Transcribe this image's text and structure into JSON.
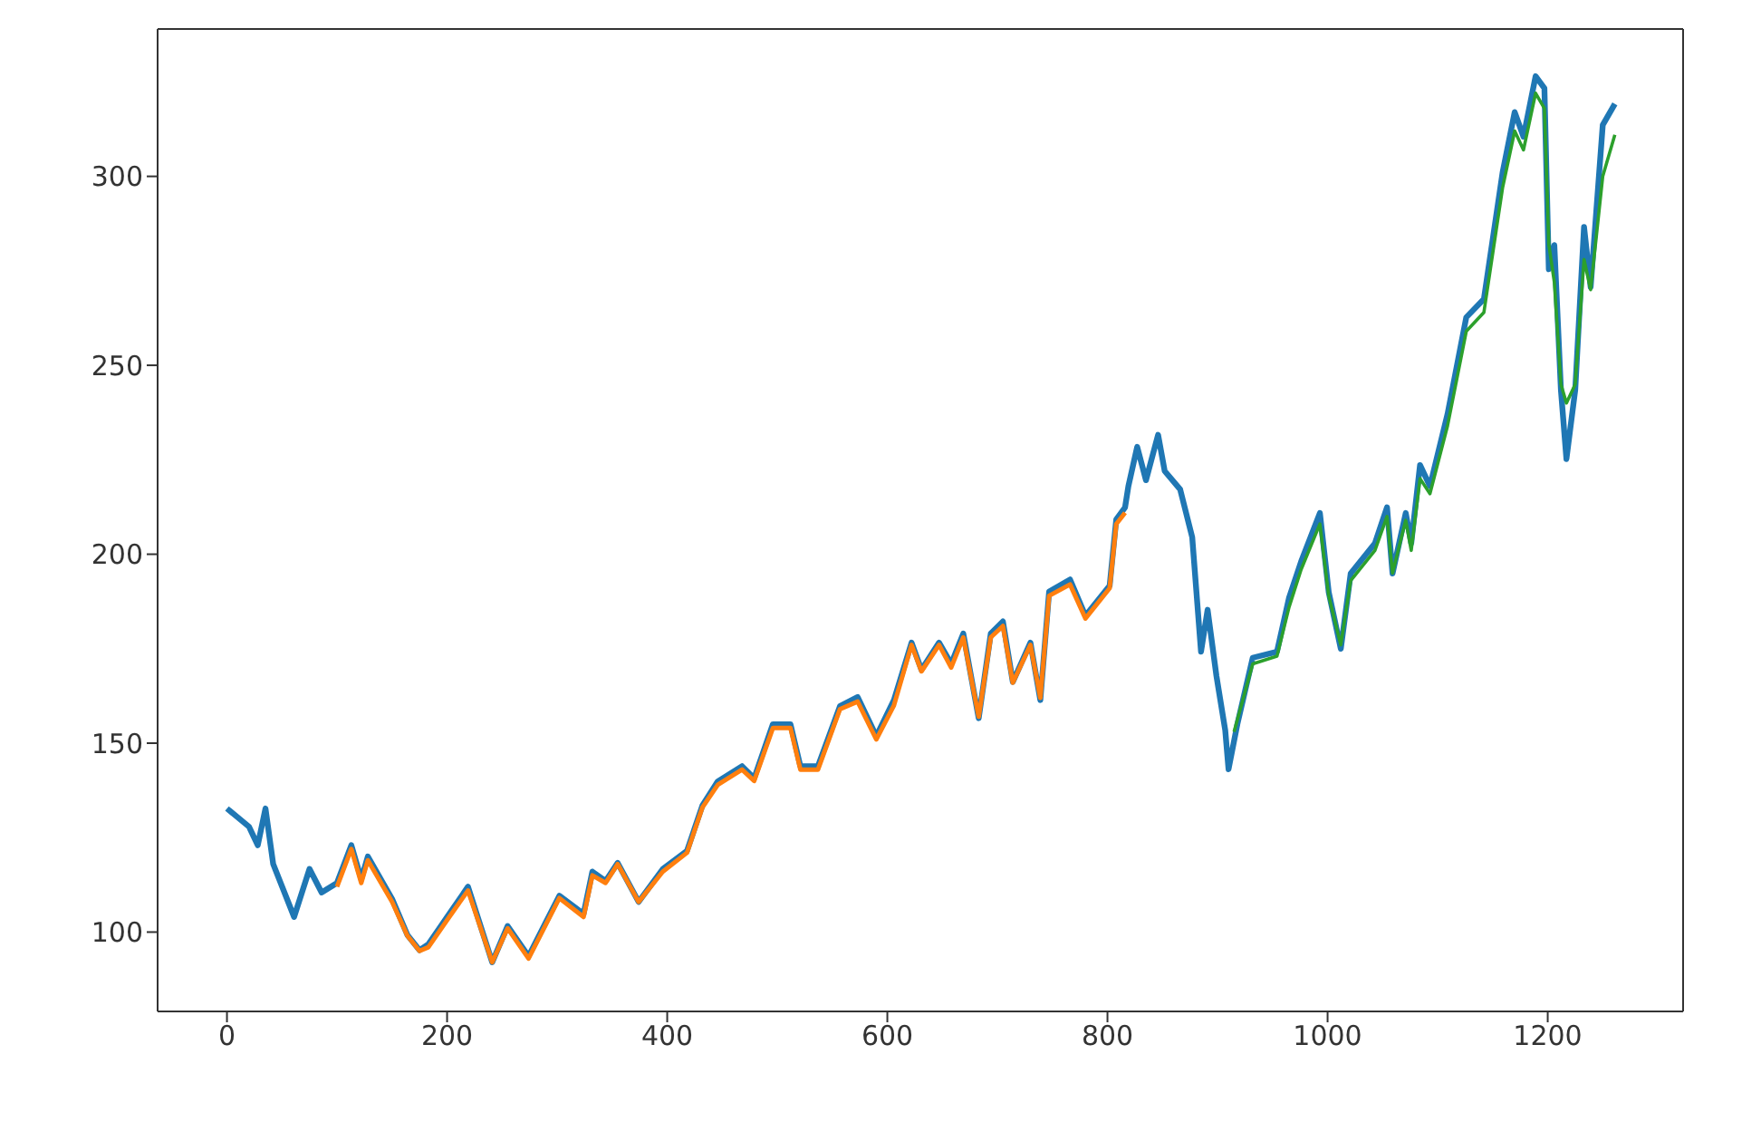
{
  "chart_data": {
    "type": "line",
    "xlim": [
      -63,
      1323
    ],
    "ylim": [
      79,
      339
    ],
    "xticks": [
      0,
      200,
      400,
      600,
      800,
      1000,
      1200
    ],
    "yticks": [
      100,
      150,
      200,
      250,
      300
    ],
    "grid": false,
    "marker": "none",
    "line_style": "solid",
    "series": [
      {
        "color": "#1f77b4",
        "x": [
          0,
          20,
          28,
          35,
          42,
          61,
          75,
          86,
          100,
          113,
          122,
          128,
          150,
          164,
          175,
          183,
          202,
          219,
          241,
          255,
          274,
          302,
          324,
          332,
          344,
          355,
          374,
          396,
          418,
          432,
          446,
          468,
          479,
          496,
          512,
          521,
          537,
          557,
          573,
          590,
          606,
          622,
          631,
          647,
          658,
          669,
          683,
          694,
          705,
          714,
          730,
          739,
          747,
          766,
          780,
          802,
          808,
          816,
          819,
          827,
          835,
          846,
          852,
          866,
          877,
          885,
          891,
          899,
          907,
          910,
          918,
          932,
          954,
          965,
          976,
          993,
          1001,
          1012,
          1021,
          1043,
          1054,
          1059,
          1071,
          1076,
          1084,
          1093,
          1109,
          1126,
          1142,
          1159,
          1170,
          1178,
          1189,
          1197,
          1201,
          1206,
          1212,
          1217,
          1225,
          1233,
          1239,
          1250,
          1261
        ],
        "values": [
          132.7,
          127.9,
          123,
          132.7,
          118,
          104,
          116.7,
          110.5,
          113,
          123,
          114,
          120,
          108.8,
          99.2,
          95.2,
          96.8,
          104.8,
          112,
          92,
          101.6,
          93.6,
          109.6,
          104.8,
          116,
          113.5,
          118.3,
          108,
          116.7,
          121.5,
          133.5,
          139.9,
          143.9,
          140.7,
          155,
          155,
          143.9,
          143.9,
          159.8,
          162.2,
          151.8,
          161.4,
          176.6,
          169.4,
          176.6,
          171,
          179,
          156.6,
          179,
          182.2,
          166.2,
          176.6,
          161.4,
          190.1,
          193.3,
          183.7,
          191.7,
          209.2,
          212.4,
          218,
          228.4,
          219.6,
          231.6,
          222,
          217.2,
          204.5,
          174.2,
          185.3,
          167.8,
          153.4,
          143.1,
          155,
          172.6,
          174.2,
          188.5,
          198.1,
          210.9,
          190,
          175,
          194.9,
          202.9,
          212.4,
          194.9,
          210.9,
          202.9,
          223.6,
          218,
          237.1,
          262.7,
          267.5,
          301,
          317,
          310.5,
          326.5,
          323.3,
          275.4,
          281.8,
          243.5,
          225.2,
          243.5,
          286.6,
          270.7,
          313.6,
          319.2
        ]
      },
      {
        "color": "#ff7f0e",
        "x": [
          100,
          113,
          122,
          128,
          150,
          164,
          175,
          183,
          202,
          219,
          241,
          255,
          274,
          302,
          324,
          332,
          344,
          355,
          374,
          396,
          418,
          432,
          446,
          468,
          479,
          496,
          512,
          521,
          537,
          557,
          573,
          590,
          606,
          622,
          631,
          647,
          658,
          669,
          683,
          694,
          705,
          714,
          730,
          739,
          747,
          766,
          780,
          802,
          808,
          816
        ],
        "values": [
          112,
          122,
          113,
          119,
          108,
          99,
          95,
          96,
          104,
          111,
          92,
          101,
          93,
          109,
          104,
          115,
          113,
          118,
          108,
          116,
          121,
          133,
          139,
          143,
          140,
          154,
          154,
          143,
          143,
          159,
          161,
          151,
          160,
          176,
          169,
          176,
          170,
          178,
          157,
          178,
          181,
          166,
          176,
          162,
          189,
          192,
          183,
          191,
          208,
          211
        ]
      },
      {
        "color": "#2ca02c",
        "x": [
          915,
          932,
          954,
          965,
          976,
          993,
          1001,
          1012,
          1021,
          1043,
          1054,
          1059,
          1071,
          1076,
          1084,
          1093,
          1109,
          1126,
          1142,
          1159,
          1170,
          1178,
          1189,
          1197,
          1201,
          1206,
          1212,
          1217,
          1225,
          1233,
          1239,
          1250,
          1261
        ],
        "values": [
          153,
          171,
          173,
          186,
          196,
          208,
          189,
          176,
          193,
          201,
          210,
          195,
          209,
          201,
          220,
          216,
          234,
          259,
          264,
          297,
          312,
          307,
          322,
          318,
          282,
          272,
          245,
          240,
          245,
          278,
          270,
          300,
          311
        ]
      }
    ]
  }
}
